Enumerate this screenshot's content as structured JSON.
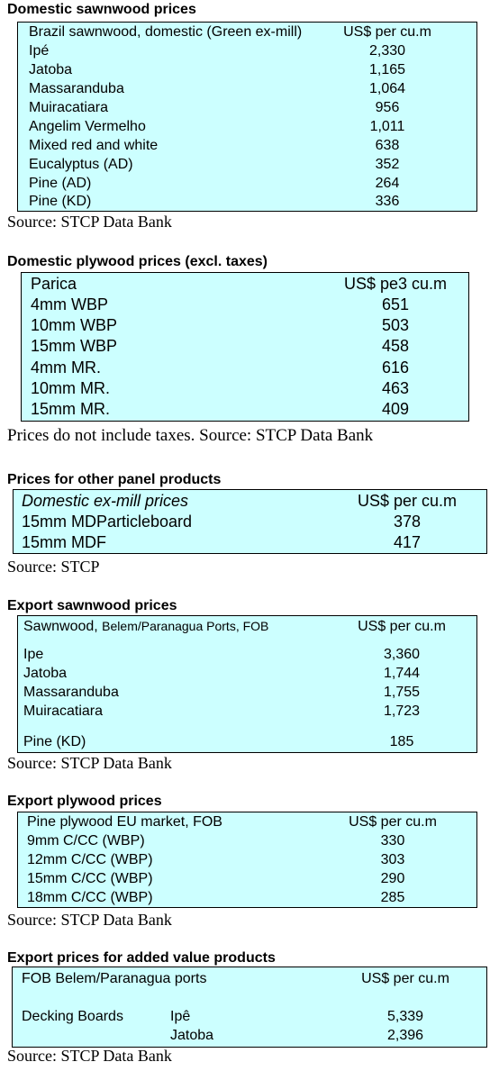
{
  "s1": {
    "title": "Domestic sawnwood prices",
    "header": [
      "Brazil sawnwood, domestic (Green ex-mill)",
      "US$ per cu.m"
    ],
    "rows": [
      [
        "Ipé",
        "2,330"
      ],
      [
        "Jatoba",
        "1,165"
      ],
      [
        "Massaranduba",
        "1,064"
      ],
      [
        "Muiracatiara",
        "956"
      ],
      [
        "Angelim Vermelho",
        "1,011"
      ],
      [
        "Mixed red and white",
        "638"
      ],
      [
        "Eucalyptus (AD)",
        "352"
      ],
      [
        "Pine (AD)",
        "264"
      ],
      [
        "Pine (KD)",
        "336"
      ]
    ],
    "source": "Source: STCP Data Bank"
  },
  "s2": {
    "title": "Domestic plywood prices (excl. taxes)",
    "header": [
      "Parica",
      "US$ pe3 cu.m"
    ],
    "rows": [
      [
        "4mm WBP",
        "651"
      ],
      [
        "10mm WBP",
        "503"
      ],
      [
        "15mm WBP",
        "458"
      ],
      [
        "4mm MR.",
        "616"
      ],
      [
        "10mm MR.",
        "463"
      ],
      [
        "15mm MR.",
        "409"
      ]
    ],
    "source": "Prices do not include taxes. Source: STCP Data Bank"
  },
  "s3": {
    "title": "Prices for other panel products",
    "header": [
      "Domestic ex-mill prices",
      "US$ per cu.m"
    ],
    "rows": [
      [
        "15mm MDParticleboard",
        "378"
      ],
      [
        "15mm MDF",
        "417"
      ]
    ],
    "source": "Source: STCP"
  },
  "s4": {
    "title": "Export sawnwood prices",
    "header_a": "Sawnwood,",
    "header_b": "Belem/Paranagua Ports, FOB",
    "header_price": "US$ per cu.m",
    "rows": [
      [
        "Ipe",
        "3,360"
      ],
      [
        "Jatoba",
        "1,744"
      ],
      [
        "Massaranduba",
        "1,755"
      ],
      [
        "Muiracatiara",
        "1,723"
      ],
      [
        "Pine (KD)",
        "185"
      ]
    ],
    "source": "Source: STCP Data Bank"
  },
  "s5": {
    "title": "Export plywood prices",
    "header": [
      "Pine plywood EU market, FOB",
      "US$ per cu.m"
    ],
    "rows": [
      [
        "9mm C/CC (WBP)",
        "330"
      ],
      [
        "12mm C/CC (WBP)",
        "303"
      ],
      [
        "15mm C/CC (WBP)",
        "290"
      ],
      [
        "18mm C/CC (WBP)",
        "285"
      ]
    ],
    "source": "Source: STCP Data Bank"
  },
  "s6": {
    "title": "Export prices for added value products",
    "header": [
      "FOB Belem/Paranagua ports",
      "US$ per cu.m"
    ],
    "group_label": "Decking Boards",
    "rows": [
      [
        "Ipê",
        "5,339"
      ],
      [
        "Jatoba",
        "2,396"
      ]
    ],
    "source": "Source: STCP Data Bank"
  }
}
